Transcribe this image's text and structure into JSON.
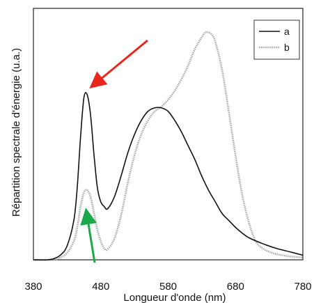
{
  "chart_data": {
    "type": "line",
    "title": "",
    "xlabel": "Longueur d'onde (nm)",
    "ylabel": "Répartition spectrale d'énergie (u.a.)",
    "xlim": [
      380,
      780
    ],
    "ylim": [
      0,
      1
    ],
    "xticks": [
      "380",
      "480",
      "580",
      "680",
      "780"
    ],
    "grid": false,
    "legend_position": "top-right",
    "series": [
      {
        "name": "a",
        "color": "#111111",
        "style": "solid",
        "x": [
          380,
          400,
          410,
          420,
          430,
          440,
          445,
          450,
          455,
          460,
          465,
          470,
          475,
          480,
          485,
          490,
          500,
          510,
          520,
          530,
          540,
          550,
          560,
          570,
          580,
          590,
          600,
          610,
          620,
          630,
          640,
          650,
          660,
          670,
          680,
          690,
          700,
          720,
          740,
          760,
          780
        ],
        "y": [
          0.0,
          0.0,
          0.005,
          0.02,
          0.06,
          0.17,
          0.31,
          0.53,
          0.7,
          0.71,
          0.62,
          0.45,
          0.31,
          0.25,
          0.23,
          0.22,
          0.27,
          0.36,
          0.46,
          0.54,
          0.6,
          0.64,
          0.655,
          0.655,
          0.64,
          0.6,
          0.55,
          0.49,
          0.43,
          0.36,
          0.3,
          0.25,
          0.2,
          0.17,
          0.14,
          0.115,
          0.095,
          0.07,
          0.05,
          0.035,
          0.02
        ]
      },
      {
        "name": "b",
        "color": "#a8a8a8",
        "style": "dotted",
        "x": [
          380,
          410,
          420,
          430,
          440,
          445,
          450,
          455,
          460,
          465,
          470,
          475,
          480,
          485,
          490,
          500,
          510,
          520,
          530,
          540,
          550,
          560,
          570,
          580,
          590,
          600,
          610,
          620,
          630,
          635,
          640,
          645,
          650,
          660,
          670,
          680,
          690,
          700,
          710,
          720,
          730,
          740,
          760,
          780
        ],
        "y": [
          0.0,
          0.0,
          0.01,
          0.03,
          0.08,
          0.14,
          0.23,
          0.29,
          0.3,
          0.27,
          0.2,
          0.13,
          0.08,
          0.05,
          0.045,
          0.09,
          0.19,
          0.33,
          0.45,
          0.54,
          0.6,
          0.64,
          0.66,
          0.69,
          0.73,
          0.78,
          0.84,
          0.91,
          0.96,
          0.98,
          0.98,
          0.97,
          0.94,
          0.82,
          0.64,
          0.45,
          0.28,
          0.16,
          0.08,
          0.05,
          0.035,
          0.025,
          0.015,
          0.01
        ]
      }
    ],
    "annotations": [
      {
        "type": "arrow",
        "color": "#e8261c",
        "points_to": "series a peak near 460 nm"
      },
      {
        "type": "arrow",
        "color": "#19a84a",
        "points_to": "series b peak near 460 nm"
      }
    ]
  }
}
